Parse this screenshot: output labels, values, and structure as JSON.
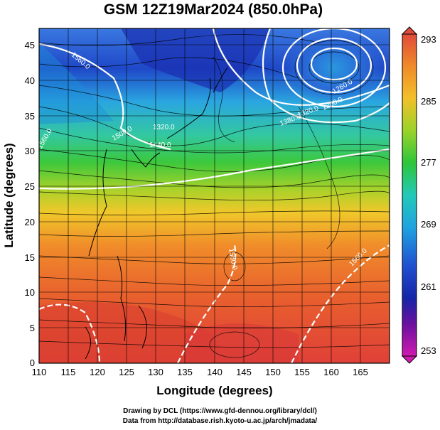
{
  "title": "GSM 12Z19Mar2024 (850.0hPa)",
  "xaxis": {
    "label": "Longitude (degrees)",
    "ticks": [
      "110",
      "115",
      "120",
      "125",
      "130",
      "135",
      "140",
      "145",
      "150",
      "155",
      "160",
      "165"
    ]
  },
  "yaxis": {
    "label": "Latitude (degrees)",
    "ticks": [
      "0",
      "5",
      "10",
      "15",
      "20",
      "25",
      "30",
      "35",
      "40",
      "45"
    ]
  },
  "colorbar": {
    "ticks": [
      "293",
      "285",
      "277",
      "269",
      "261",
      "253"
    ],
    "colors": [
      "#e04a3a",
      "#f08a2a",
      "#f2c02a",
      "#9ad32a",
      "#2dc63a",
      "#22c9b8",
      "#1fa3e0",
      "#2050d0",
      "#1525a8",
      "#6a10a0",
      "#d01ab0"
    ]
  },
  "contour_labels": [
    "1560.0",
    "1320.0",
    "1440.0",
    "1560.0",
    "1260.0",
    "1380.0",
    "1320.0",
    "1500.0",
    "1260.0",
    "1560.0",
    "1560.0"
  ],
  "credits": {
    "line1": "Drawing by DCL (https://www.gfd-dennou.org/library/dcl/)",
    "line2": "Data from http://database.rish.kyoto-u.ac.jp/arch/jmadata/"
  }
}
